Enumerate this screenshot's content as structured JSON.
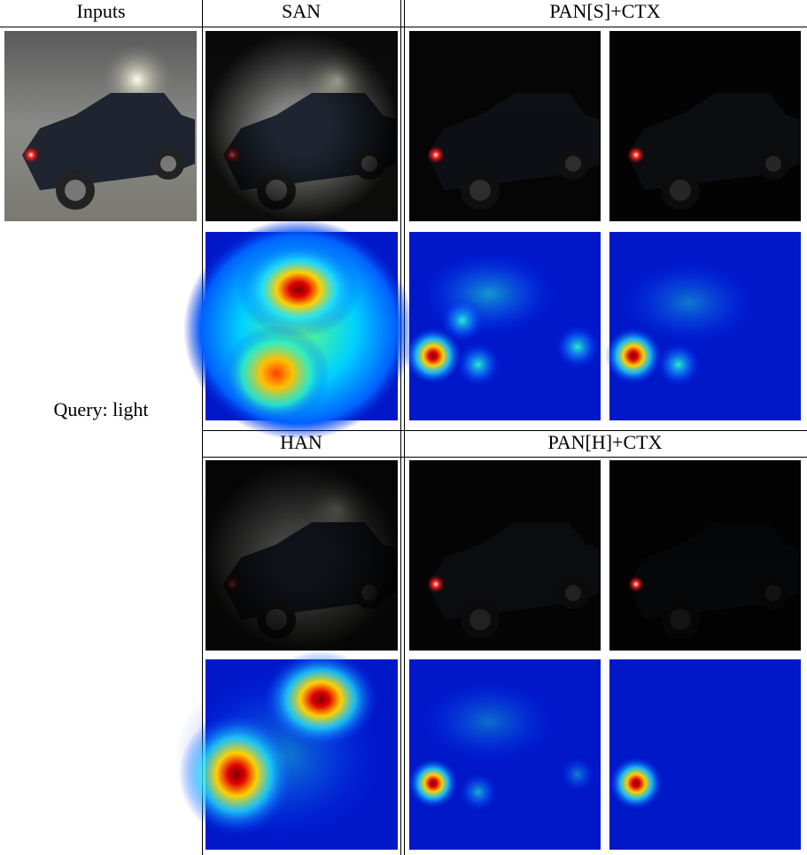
{
  "header": {
    "columns": [
      "Inputs",
      "SAN",
      "PAN[S]+CTX"
    ]
  },
  "query": "Query: light",
  "second_header": {
    "columns": [
      "HAN",
      "PAN[H]+CTX"
    ]
  }
}
